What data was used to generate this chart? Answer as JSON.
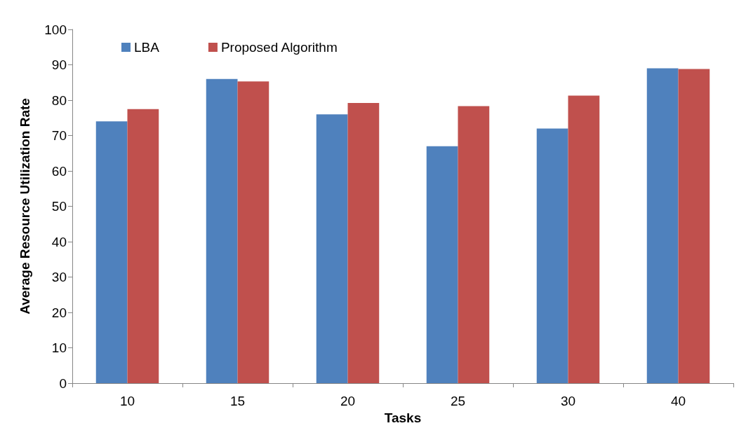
{
  "chart_data": {
    "type": "bar",
    "xlabel": "Tasks",
    "ylabel": "Average Resource Utilization Rate",
    "categories": [
      "10",
      "15",
      "20",
      "25",
      "30",
      "40"
    ],
    "series": [
      {
        "name": "LBA",
        "color": "#4f81bd",
        "values": [
          74,
          86,
          76,
          67,
          72,
          89
        ]
      },
      {
        "name": "Proposed Algorithm",
        "color": "#c0504d",
        "values": [
          77.5,
          85.3,
          79.2,
          78.3,
          81.3,
          88.8
        ]
      }
    ],
    "ylim": [
      0,
      100
    ],
    "yticks": [
      0,
      10,
      20,
      30,
      40,
      50,
      60,
      70,
      80,
      90,
      100
    ],
    "grid": false,
    "legend": "top left"
  }
}
